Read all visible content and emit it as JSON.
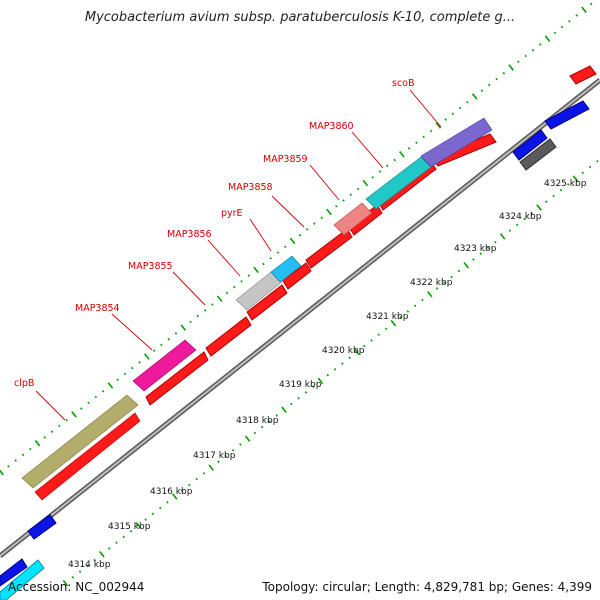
{
  "title": "Mycobacterium avium subsp. paratuberculosis K-10, complete g...",
  "footer": {
    "accession": "Accession: NC_002944",
    "stats": "Topology: circular; Length: 4,829,781 bp; Genes: 4,399"
  },
  "colors": {
    "cds": "#ff0000",
    "cds_dark": "#0000ee",
    "backbone": "#909090",
    "tick": "#00a000",
    "label": "#d40000"
  },
  "gene_labels": [
    "clpB",
    "MAP3854",
    "MAP3855",
    "MAP3856",
    "pyrE",
    "MAP3858",
    "MAP3859",
    "MAP3860",
    "scoB"
  ],
  "scale_labels": [
    "4314 kbp",
    "4315 kbp",
    "4316 kbp",
    "4317 kbp",
    "4318 kbp",
    "4319 kbp",
    "4320 kbp",
    "4321 kbp",
    "4322 kbp",
    "4323 kbp",
    "4324 kbp",
    "4325 kbp"
  ]
}
